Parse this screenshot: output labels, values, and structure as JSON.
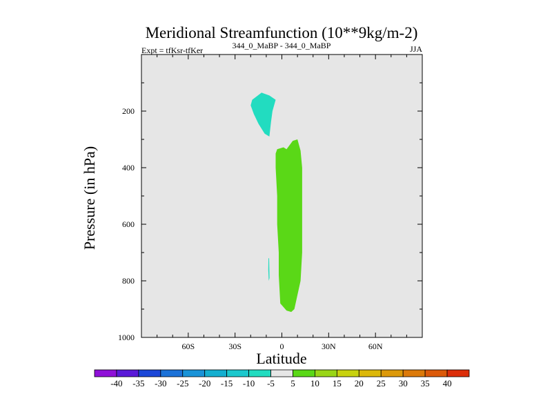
{
  "chart_data": {
    "type": "contour",
    "title": "Meridional Streamfunction (10**9kg/m-2)",
    "subtitle_left": "Expt = tfKsr-tfKer",
    "subtitle_center": "344_0_MaBP - 344_0_MaBP",
    "subtitle_right": "JJA",
    "xlabel": "Latitude",
    "ylabel": "Pressure (in hPa)",
    "xlim": [
      -90,
      90
    ],
    "ylim": [
      1000,
      0
    ],
    "x_ticks": [
      {
        "value": -60,
        "label": "60S"
      },
      {
        "value": -30,
        "label": "30S"
      },
      {
        "value": 0,
        "label": "0"
      },
      {
        "value": 30,
        "label": "30N"
      },
      {
        "value": 60,
        "label": "60N"
      }
    ],
    "y_ticks": [
      {
        "value": 200,
        "label": "200"
      },
      {
        "value": 400,
        "label": "400"
      },
      {
        "value": 600,
        "label": "600"
      },
      {
        "value": 800,
        "label": "800"
      },
      {
        "value": 1000,
        "label": "1000"
      }
    ],
    "background_color": "#e6e6e6",
    "regions": [
      {
        "name": "negative-cell-upper",
        "level": "-10 to -5",
        "color": "#22dcc0",
        "polygon": [
          [
            -19,
            160
          ],
          [
            -13,
            135
          ],
          [
            -8,
            145
          ],
          [
            -4,
            160
          ],
          [
            -6,
            200
          ],
          [
            -7,
            240
          ],
          [
            -8,
            290
          ],
          [
            -11,
            280
          ],
          [
            -15,
            245
          ],
          [
            -18,
            210
          ],
          [
            -20,
            180
          ]
        ]
      },
      {
        "name": "positive-cell",
        "level": "5 to 10",
        "color": "#5ad817",
        "polygon": [
          [
            -3,
            335
          ],
          [
            1,
            328
          ],
          [
            3,
            335
          ],
          [
            7,
            305
          ],
          [
            10,
            300
          ],
          [
            12,
            340
          ],
          [
            13,
            400
          ],
          [
            13,
            500
          ],
          [
            13,
            600
          ],
          [
            13,
            700
          ],
          [
            12,
            800
          ],
          [
            10,
            850
          ],
          [
            8,
            900
          ],
          [
            6,
            910
          ],
          [
            3,
            905
          ],
          [
            -1,
            880
          ],
          [
            -2,
            780
          ],
          [
            -2,
            700
          ],
          [
            -3,
            600
          ],
          [
            -3,
            500
          ],
          [
            -4,
            400
          ],
          [
            -4,
            350
          ]
        ]
      },
      {
        "name": "negative-sliver",
        "level": "-10 to -5",
        "color": "#22dcc0",
        "polygon": [
          [
            -8.6,
            720
          ],
          [
            -8.2,
            720
          ],
          [
            -7.9,
            790
          ],
          [
            -8.4,
            800
          ],
          [
            -8.7,
            760
          ]
        ]
      }
    ],
    "colorbar": {
      "labels": [
        "-40",
        "-35",
        "-30",
        "-25",
        "-20",
        "-15",
        "-10",
        "-5",
        "5",
        "10",
        "15",
        "20",
        "25",
        "30",
        "35",
        "40"
      ],
      "colors": [
        "#8f10d8",
        "#5a19d8",
        "#1c47d8",
        "#1c72d8",
        "#1993d8",
        "#14afd0",
        "#1cc8cd",
        "#22dcc0",
        "#e6e6e6",
        "#5ad817",
        "#99d617",
        "#c8d20f",
        "#dcb80a",
        "#dc990a",
        "#dc7a0a",
        "#dc5a0a",
        "#dc2e0a"
      ]
    }
  }
}
